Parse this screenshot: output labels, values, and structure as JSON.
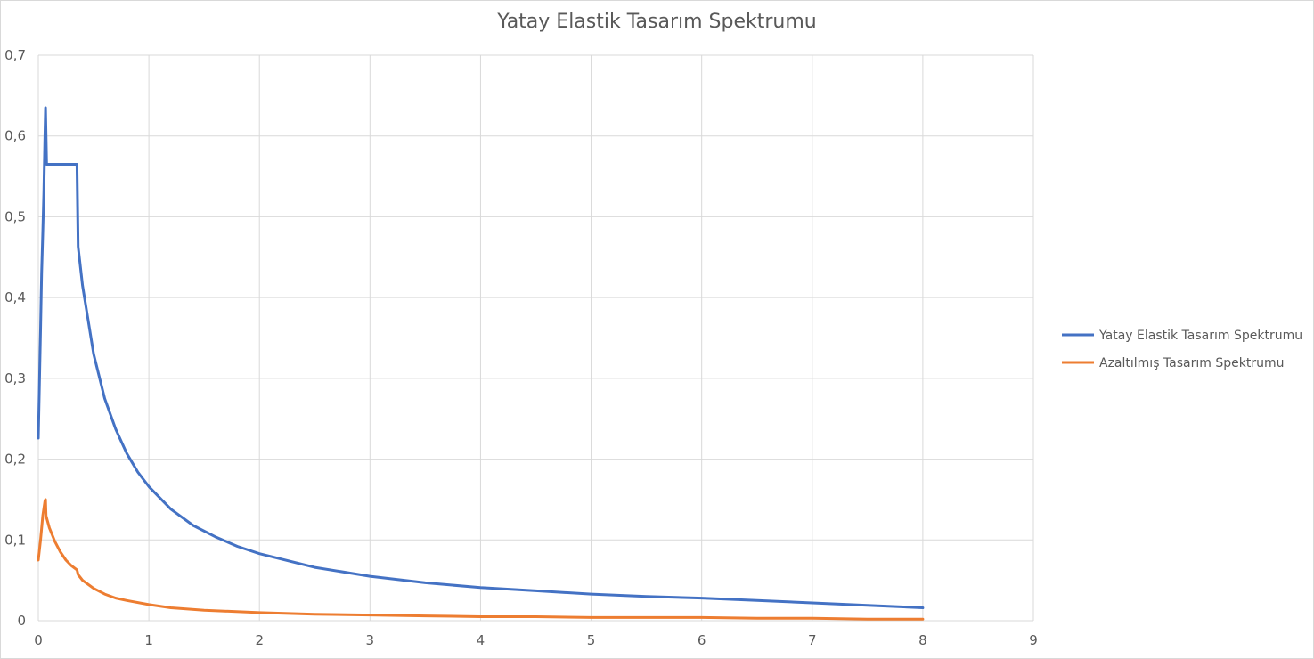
{
  "chart_data": {
    "type": "line",
    "title": "Yatay Elastik Tasarım Spektrumu",
    "xlabel": "",
    "ylabel": "",
    "xlim": [
      0,
      9
    ],
    "ylim": [
      0,
      0.7
    ],
    "x_ticks": [
      "0",
      "1",
      "2",
      "3",
      "4",
      "5",
      "6",
      "7",
      "8",
      "9"
    ],
    "y_ticks": [
      "0",
      "0,1",
      "0,2",
      "0,3",
      "0,4",
      "0,5",
      "0,6",
      "0,7"
    ],
    "grid": true,
    "legend_position": "right",
    "series": [
      {
        "name": "Yatay Elastik Tasarım Spektrumu",
        "color": "#4472c4",
        "x": [
          0,
          0.01,
          0.02,
          0.03,
          0.04,
          0.05,
          0.06,
          0.065,
          0.07,
          0.075,
          0.08,
          0.1,
          0.2,
          0.3,
          0.35,
          0.36,
          0.4,
          0.5,
          0.6,
          0.7,
          0.8,
          0.9,
          1.0,
          1.2,
          1.4,
          1.6,
          1.8,
          2.0,
          2.5,
          3.0,
          3.5,
          4.0,
          4.5,
          5.0,
          5.5,
          6.0,
          6.5,
          7.0,
          7.5,
          8.0
        ],
        "values": [
          0.226,
          0.29,
          0.36,
          0.43,
          0.48,
          0.53,
          0.6,
          0.635,
          0.6,
          0.565,
          0.565,
          0.565,
          0.565,
          0.565,
          0.565,
          0.463,
          0.415,
          0.33,
          0.275,
          0.237,
          0.207,
          0.184,
          0.166,
          0.138,
          0.118,
          0.104,
          0.092,
          0.083,
          0.066,
          0.055,
          0.047,
          0.041,
          0.037,
          0.033,
          0.03,
          0.028,
          0.025,
          0.022,
          0.019,
          0.016
        ]
      },
      {
        "name": "Azaltılmış Tasarım Spektrumu",
        "color": "#ed7d31",
        "x": [
          0,
          0.02,
          0.04,
          0.06,
          0.065,
          0.07,
          0.08,
          0.1,
          0.15,
          0.2,
          0.25,
          0.3,
          0.35,
          0.36,
          0.4,
          0.5,
          0.6,
          0.7,
          0.8,
          1.0,
          1.2,
          1.5,
          2.0,
          2.5,
          3.0,
          3.5,
          4.0,
          4.5,
          5.0,
          5.5,
          6.0,
          6.5,
          7.0,
          7.5,
          8.0
        ],
        "values": [
          0.075,
          0.1,
          0.13,
          0.148,
          0.15,
          0.13,
          0.125,
          0.115,
          0.098,
          0.085,
          0.075,
          0.068,
          0.063,
          0.057,
          0.05,
          0.04,
          0.033,
          0.028,
          0.025,
          0.02,
          0.016,
          0.013,
          0.01,
          0.008,
          0.007,
          0.006,
          0.005,
          0.005,
          0.004,
          0.004,
          0.004,
          0.003,
          0.003,
          0.002,
          0.002
        ]
      }
    ]
  }
}
